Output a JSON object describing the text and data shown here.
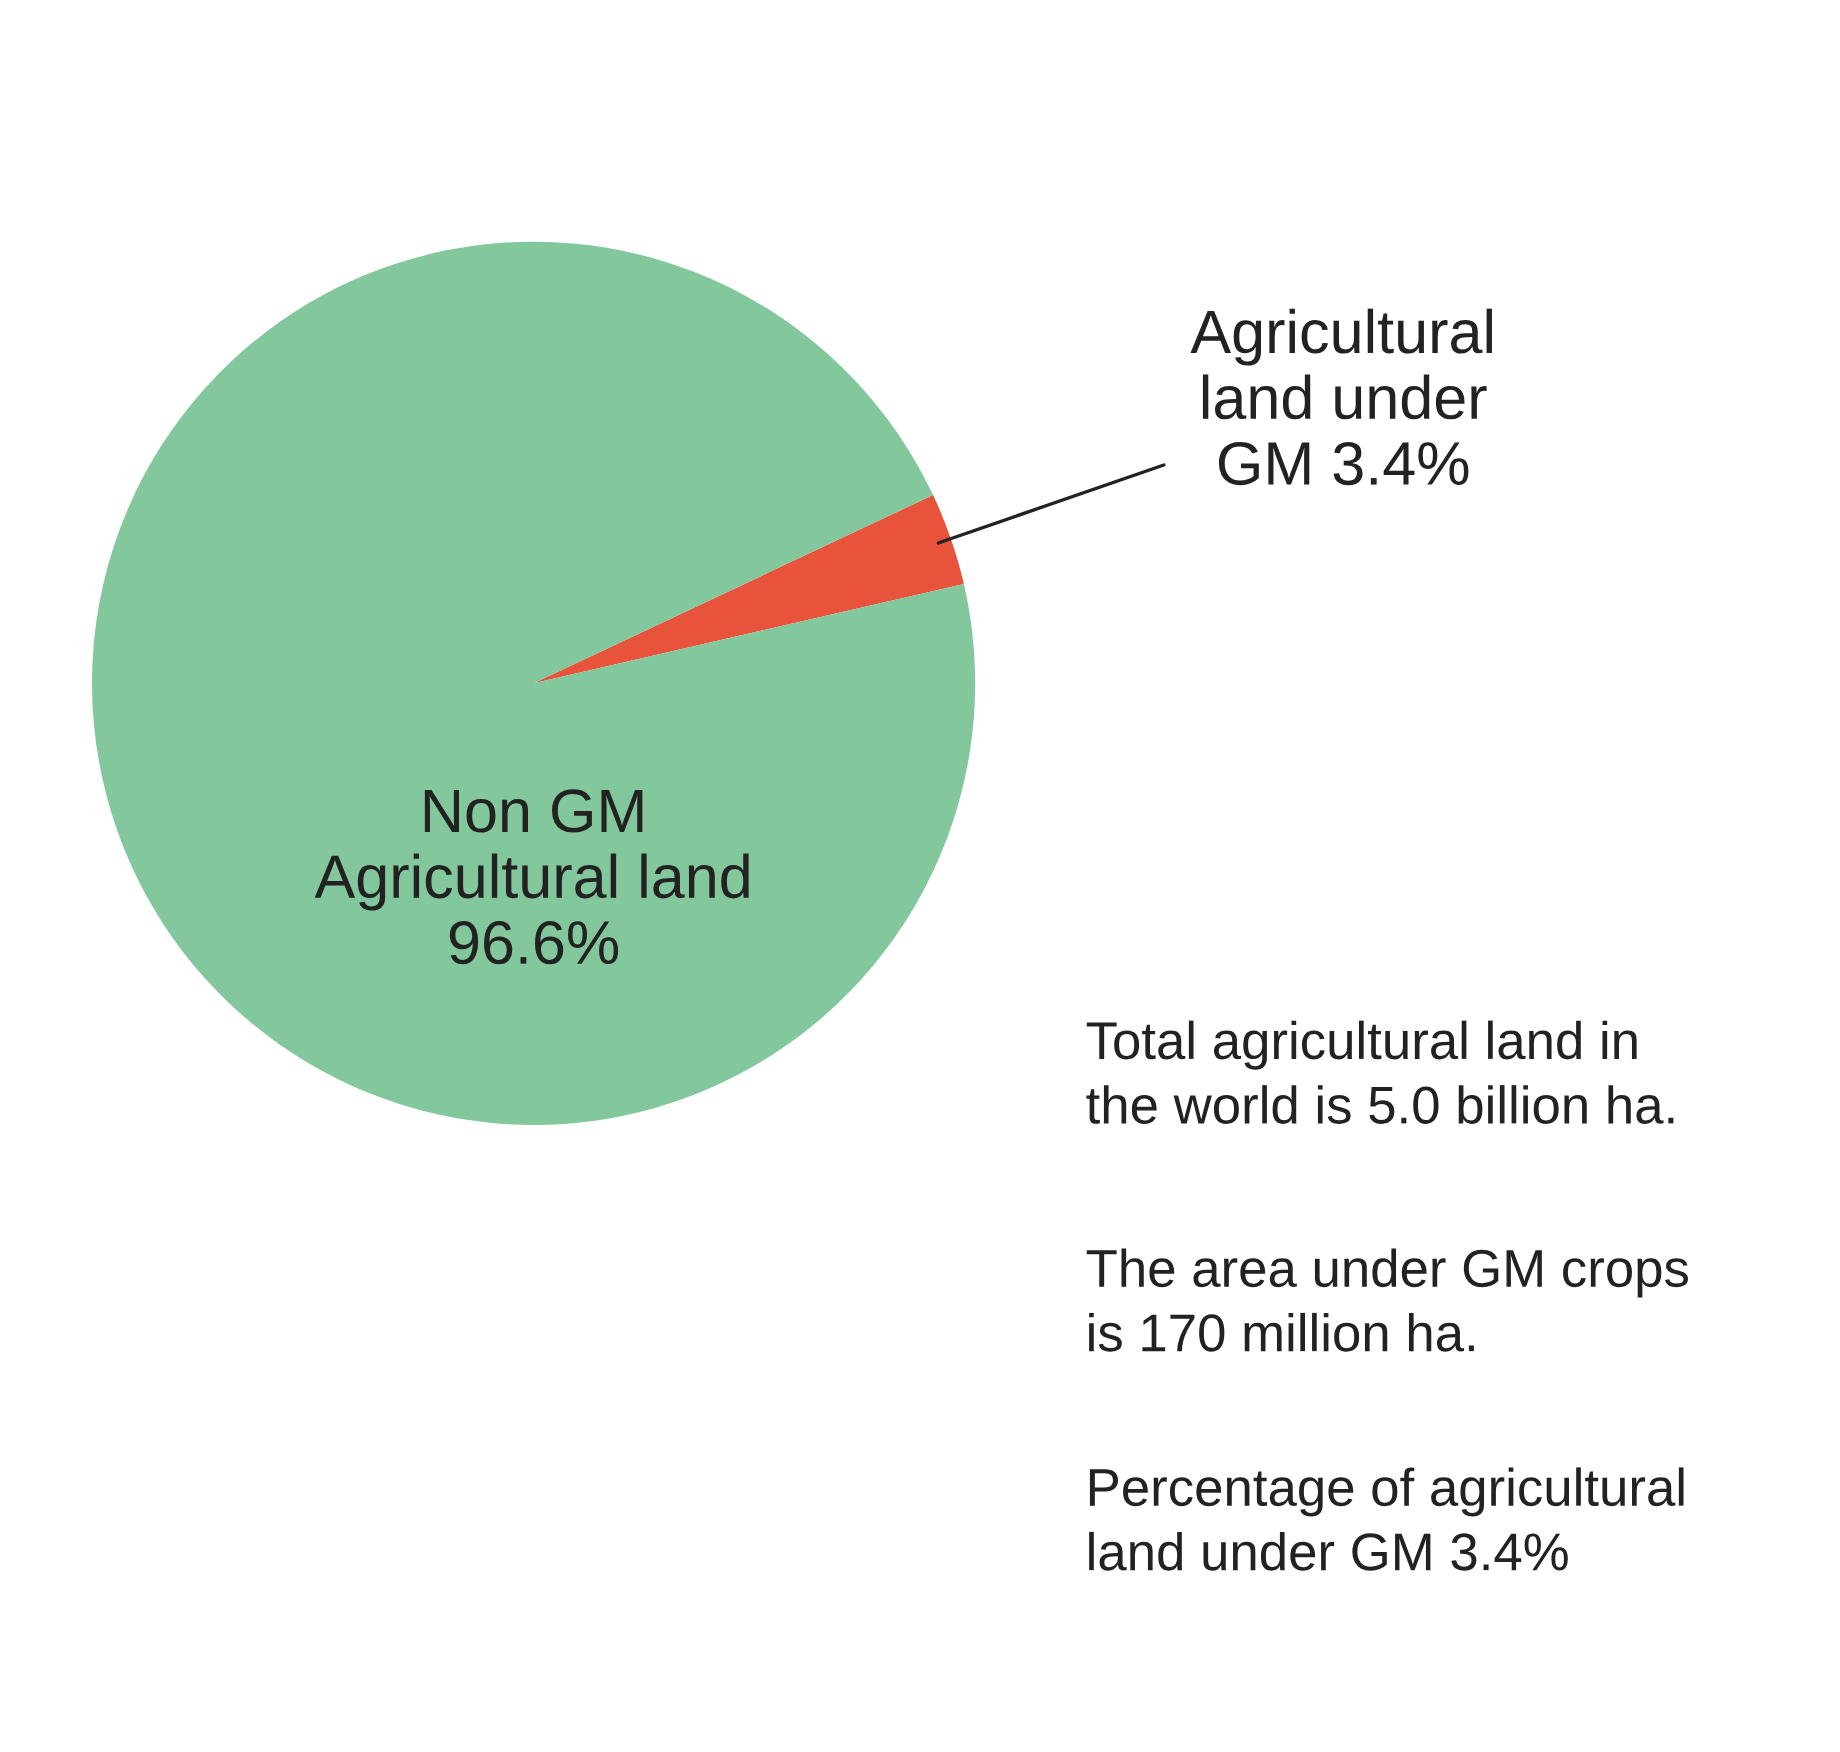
{
  "chart_data": {
    "type": "pie",
    "categories": [
      "Agricultural\nland under\nGM 3.4%",
      "Non GM\nAgricultural land\n96.6%"
    ],
    "values": [
      3.4,
      96.6
    ],
    "colors": [
      "#e8533b",
      "#82c89c"
    ],
    "annotations": [
      "Total agricultural land in\nthe world is 5.0 billion ha.",
      "The area under GM crops\nis 170 million ha.",
      "Percentage of agricultural\nland under GM 3.4%"
    ],
    "legend": false
  }
}
